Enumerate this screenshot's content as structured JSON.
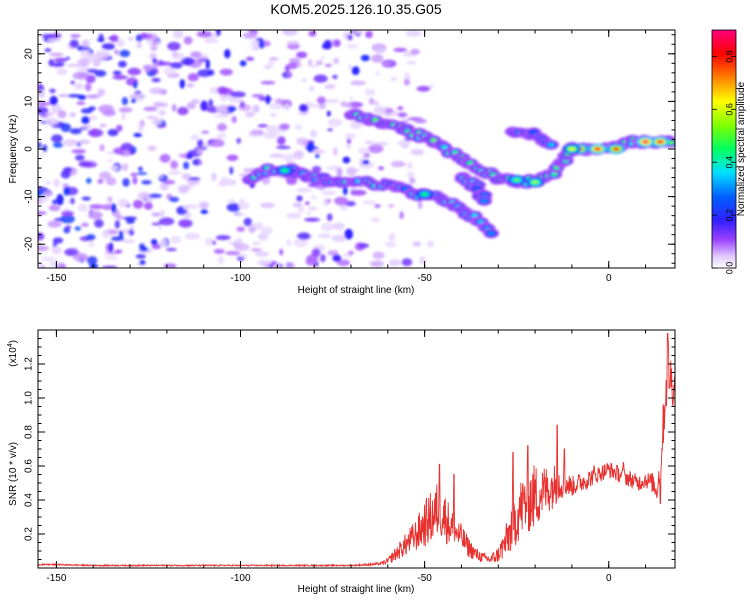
{
  "title": "KOM5.2025.126.10.35.G05",
  "colors": {
    "snr_line": "#e8312f",
    "axis": "#000000",
    "background": "#ffffff"
  },
  "chart_data": [
    {
      "type": "heatmap",
      "xlabel": "Height of straight line (km)",
      "ylabel": "Frequency (Hz)",
      "xlim": [
        -155,
        18
      ],
      "ylim": [
        -25,
        25
      ],
      "xticks": [
        -150,
        -100,
        -50,
        0
      ],
      "yticks": [
        -20,
        -10,
        0,
        10,
        20
      ],
      "colorbar": {
        "label": "Normalized spectral amplitude",
        "range": [
          0,
          0.9
        ],
        "ticks": [
          0.0,
          0.2,
          0.4,
          0.6,
          0.8
        ]
      },
      "ridges": [
        {
          "points": [
            [
              -98,
              -6
            ],
            [
              -92,
              -4.5
            ],
            [
              -86,
              -4.5
            ],
            [
              -80,
              -6
            ],
            [
              -74,
              -7
            ],
            [
              -66,
              -7
            ],
            [
              -58,
              -8
            ],
            [
              -52,
              -9.5
            ],
            [
              -46,
              -10
            ],
            [
              -40,
              -13
            ],
            [
              -35,
              -15
            ],
            [
              -32,
              -18
            ]
          ],
          "value": 0.35
        },
        {
          "points": [
            [
              -70,
              7.5
            ],
            [
              -64,
              6
            ],
            [
              -58,
              5
            ],
            [
              -52,
              3
            ],
            [
              -46,
              1
            ],
            [
              -40,
              -2
            ],
            [
              -36,
              -4
            ],
            [
              -30,
              -6
            ],
            [
              -24,
              -7
            ],
            [
              -18,
              -6.5
            ],
            [
              -14,
              -4
            ],
            [
              -10,
              0
            ],
            [
              -6,
              0
            ],
            [
              0,
              0
            ],
            [
              6,
              1.5
            ],
            [
              12,
              1.5
            ],
            [
              18,
              1.5
            ]
          ],
          "value": 0.45
        },
        {
          "points": [
            [
              -40,
              -6
            ],
            [
              -36,
              -8
            ],
            [
              -33,
              -11
            ]
          ],
          "value": 0.3
        },
        {
          "points": [
            [
              -26,
              4
            ],
            [
              -20,
              3
            ],
            [
              -15,
              0
            ]
          ],
          "value": 0.3
        }
      ],
      "hotspots": [
        {
          "x": -8,
          "y": 0,
          "value": 0.8
        },
        {
          "x": -3,
          "y": 0,
          "value": 0.85
        },
        {
          "x": 2,
          "y": 0,
          "value": 0.8
        },
        {
          "x": 10,
          "y": 1.5,
          "value": 0.88
        },
        {
          "x": 14,
          "y": 1.5,
          "value": 0.85
        },
        {
          "x": -25,
          "y": -6.5,
          "value": 0.5
        },
        {
          "x": -20,
          "y": -7,
          "value": 0.55
        },
        {
          "x": -88,
          "y": -4.5,
          "value": 0.45
        },
        {
          "x": -50,
          "y": -9.5,
          "value": 0.45
        },
        {
          "x": -10,
          "y": 0,
          "value": 0.6
        }
      ]
    },
    {
      "type": "line",
      "xlabel": "Height of straight line (km)",
      "ylabel": "SNR (10 * v/v)",
      "y_multiplier": "(x10",
      "y_multiplier_exp": "4",
      "y_multiplier_close": ")",
      "xlim": [
        -155,
        18
      ],
      "ylim": [
        0,
        1.4
      ],
      "xticks": [
        -150,
        -100,
        -50,
        0
      ],
      "yticks": [
        0.2,
        0.4,
        0.6,
        0.8,
        1.0,
        1.2
      ],
      "series": [
        {
          "x": [
            -155,
            -150,
            -140,
            -130,
            -120,
            -110,
            -100,
            -90,
            -80,
            -70,
            -65,
            -62,
            -60,
            -58,
            -56,
            -54,
            -52,
            -50,
            -48,
            -46,
            -44,
            -42,
            -40,
            -38,
            -36,
            -34,
            -32,
            -30,
            -28,
            -26,
            -24,
            -22,
            -20,
            -18,
            -16,
            -14,
            -12,
            -10,
            -8,
            -6,
            -4,
            -2,
            0,
            2,
            4,
            6,
            8,
            10,
            12,
            13,
            14,
            15,
            16,
            17,
            18
          ],
          "y": [
            0.02,
            0.02,
            0.015,
            0.015,
            0.015,
            0.015,
            0.015,
            0.015,
            0.015,
            0.015,
            0.02,
            0.025,
            0.04,
            0.08,
            0.12,
            0.16,
            0.2,
            0.26,
            0.3,
            0.35,
            0.28,
            0.22,
            0.18,
            0.12,
            0.08,
            0.06,
            0.05,
            0.08,
            0.15,
            0.25,
            0.35,
            0.4,
            0.42,
            0.45,
            0.47,
            0.5,
            0.5,
            0.48,
            0.5,
            0.52,
            0.54,
            0.56,
            0.58,
            0.56,
            0.54,
            0.52,
            0.5,
            0.52,
            0.5,
            0.45,
            0.6,
            0.9,
            1.2,
            1.1,
            1.05
          ],
          "noise_amp": [
            0.004,
            0.004,
            0.004,
            0.004,
            0.004,
            0.004,
            0.004,
            0.004,
            0.004,
            0.004,
            0.006,
            0.008,
            0.02,
            0.04,
            0.06,
            0.08,
            0.1,
            0.14,
            0.16,
            0.18,
            0.14,
            0.1,
            0.08,
            0.06,
            0.04,
            0.03,
            0.03,
            0.05,
            0.1,
            0.15,
            0.18,
            0.2,
            0.2,
            0.16,
            0.14,
            0.12,
            0.08,
            0.06,
            0.06,
            0.06,
            0.05,
            0.05,
            0.05,
            0.05,
            0.05,
            0.05,
            0.05,
            0.05,
            0.06,
            0.06,
            0.1,
            0.15,
            0.2,
            0.15,
            0.12
          ],
          "spikes": [
            [
              -46,
              0.61
            ],
            [
              -42,
              0.55
            ],
            [
              -22,
              0.72
            ],
            [
              -26,
              0.68
            ],
            [
              -14,
              0.84
            ],
            [
              -12,
              0.7
            ],
            [
              -4,
              0.6
            ],
            [
              4,
              0.62
            ],
            [
              14,
              0.38
            ],
            [
              16,
              1.38
            ]
          ]
        }
      ]
    }
  ]
}
